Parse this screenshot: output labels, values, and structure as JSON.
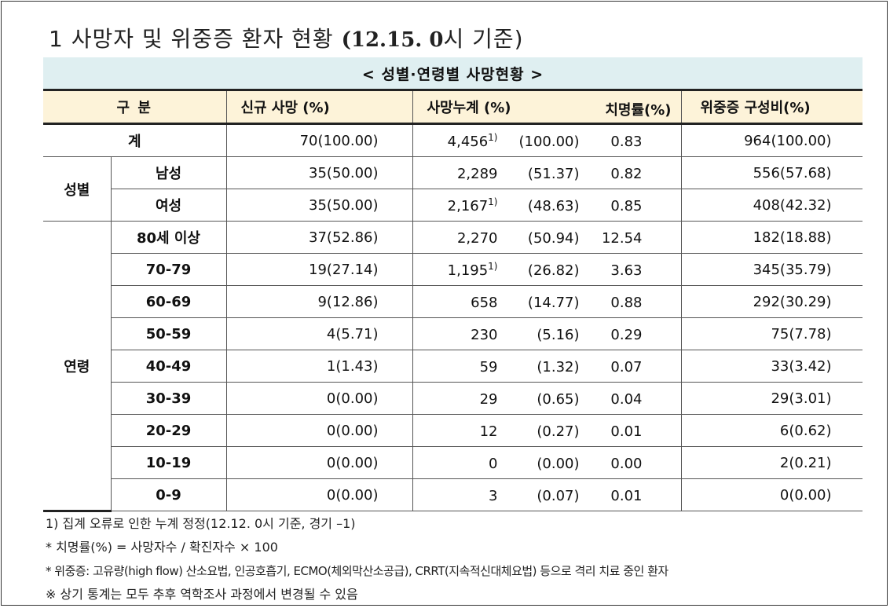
{
  "title": {
    "prefix": "1  사망자 및 위중증 환자 현황 ",
    "date": "(12.15. 0",
    "suffix": "시 기준)"
  },
  "banner": "< 성별·연령별 사망현황 >",
  "headers": {
    "group": "구 분",
    "new": "신규 사망  (%)",
    "cum": "사망누계   (%)",
    "fatality": "치명률(%)",
    "severe": "위중증    구성비(%)"
  },
  "total": {
    "label": "계",
    "new": "70(100.00)",
    "cum": "4,456",
    "cum_sup": "1)",
    "cum_pct": "(100.00)",
    "fatality": "0.83",
    "severe": "964(100.00)"
  },
  "sex": {
    "group_label": "성별",
    "rows": [
      {
        "label": "남성",
        "new": "35(50.00)",
        "cum": "2,289",
        "cum_sup": "",
        "cum_pct": "(51.37)",
        "fatality": "0.82",
        "severe": "556(57.68)"
      },
      {
        "label": "여성",
        "new": "35(50.00)",
        "cum": "2,167",
        "cum_sup": "1)",
        "cum_pct": "(48.63)",
        "fatality": "0.85",
        "severe": "408(42.32)"
      }
    ]
  },
  "age": {
    "group_label": "연령",
    "rows": [
      {
        "label": "80세 이상",
        "new": "37(52.86)",
        "cum": "2,270",
        "cum_sup": "",
        "cum_pct": "(50.94)",
        "fatality": "12.54",
        "severe": "182(18.88)"
      },
      {
        "label": "70-79",
        "new": "19(27.14)",
        "cum": "1,195",
        "cum_sup": "1)",
        "cum_pct": "(26.82)",
        "fatality": "3.63",
        "severe": "345(35.79)"
      },
      {
        "label": "60-69",
        "new": "9(12.86)",
        "cum": "658",
        "cum_sup": "",
        "cum_pct": "(14.77)",
        "fatality": "0.88",
        "severe": "292(30.29)"
      },
      {
        "label": "50-59",
        "new": "4(5.71)",
        "cum": "230",
        "cum_sup": "",
        "cum_pct": "(5.16)",
        "fatality": "0.29",
        "severe": "75(7.78)"
      },
      {
        "label": "40-49",
        "new": "1(1.43)",
        "cum": "59",
        "cum_sup": "",
        "cum_pct": "(1.32)",
        "fatality": "0.07",
        "severe": "33(3.42)"
      },
      {
        "label": "30-39",
        "new": "0(0.00)",
        "cum": "29",
        "cum_sup": "",
        "cum_pct": "(0.65)",
        "fatality": "0.04",
        "severe": "29(3.01)"
      },
      {
        "label": "20-29",
        "new": "0(0.00)",
        "cum": "12",
        "cum_sup": "",
        "cum_pct": "(0.27)",
        "fatality": "0.01",
        "severe": "6(0.62)"
      },
      {
        "label": "10-19",
        "new": "0(0.00)",
        "cum": "0",
        "cum_sup": "",
        "cum_pct": "(0.00)",
        "fatality": "0.00",
        "severe": "2(0.21)"
      },
      {
        "label": "0-9",
        "new": "0(0.00)",
        "cum": "3",
        "cum_sup": "",
        "cum_pct": "(0.07)",
        "fatality": "0.01",
        "severe": "0(0.00)"
      }
    ]
  },
  "notes": [
    "1) 집계 오류로 인한 누계 정정(12.12. 0시 기준, 경기 –1)",
    "* 치명률(%) = 사망자수 / 확진자수 × 100",
    "* 위중증: 고유량(high flow) 산소요법, 인공호흡기, ECMO(체외막산소공급), CRRT(지속적신대체요법) 등으로 격리 치료 중인 환자",
    "※ 상기 통계는 모두 추후 역학조사 과정에서 변경될 수 있음"
  ]
}
